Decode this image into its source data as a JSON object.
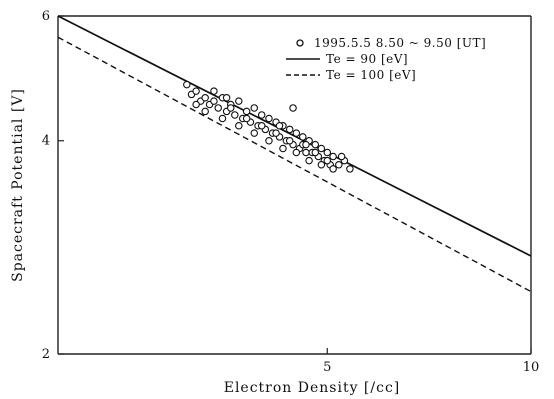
{
  "chart_data": {
    "type": "scatter",
    "xlabel": "Electron Density [/cc]",
    "ylabel": "Spacecraft Potential [V]",
    "xscale": "log",
    "yscale": "log",
    "xlim": [
      2,
      10
    ],
    "ylim": [
      2,
      6
    ],
    "x_ticks": [
      {
        "value": 5,
        "label": "5"
      },
      {
        "value": 10,
        "label": "10"
      }
    ],
    "y_ticks": [
      {
        "value": 2,
        "label": "2"
      },
      {
        "value": 4,
        "label": "4"
      },
      {
        "value": 6,
        "label": "6"
      }
    ],
    "grid": false,
    "legend_position": "top-right",
    "series": [
      {
        "name": "1995.5.5 8.50 ~ 9.50 [UT]",
        "kind": "scatter",
        "marker": "open-circle",
        "points": [
          [
            3.1,
            4.8
          ],
          [
            3.15,
            4.65
          ],
          [
            3.2,
            4.7
          ],
          [
            3.25,
            4.55
          ],
          [
            3.3,
            4.6
          ],
          [
            3.35,
            4.5
          ],
          [
            3.4,
            4.7
          ],
          [
            3.45,
            4.45
          ],
          [
            3.5,
            4.6
          ],
          [
            3.55,
            4.4
          ],
          [
            3.6,
            4.5
          ],
          [
            3.65,
            4.35
          ],
          [
            3.7,
            4.55
          ],
          [
            3.75,
            4.3
          ],
          [
            3.8,
            4.4
          ],
          [
            3.85,
            4.25
          ],
          [
            3.9,
            4.45
          ],
          [
            3.95,
            4.2
          ],
          [
            4.0,
            4.35
          ],
          [
            4.05,
            4.15
          ],
          [
            4.1,
            4.3
          ],
          [
            4.15,
            4.1
          ],
          [
            4.2,
            4.25
          ],
          [
            4.25,
            4.05
          ],
          [
            4.3,
            4.2
          ],
          [
            4.35,
            4.0
          ],
          [
            4.4,
            4.15
          ],
          [
            4.45,
            3.95
          ],
          [
            4.5,
            4.1
          ],
          [
            4.55,
            3.9
          ],
          [
            4.6,
            4.05
          ],
          [
            4.65,
            3.85
          ],
          [
            4.7,
            4.0
          ],
          [
            4.75,
            3.85
          ],
          [
            4.8,
            3.95
          ],
          [
            4.85,
            3.8
          ],
          [
            4.9,
            3.9
          ],
          [
            4.95,
            3.75
          ],
          [
            5.0,
            3.85
          ],
          [
            5.05,
            3.7
          ],
          [
            5.1,
            3.8
          ],
          [
            5.2,
            3.7
          ],
          [
            5.3,
            3.75
          ],
          [
            5.4,
            3.65
          ],
          [
            3.3,
            4.4
          ],
          [
            3.5,
            4.3
          ],
          [
            3.7,
            4.2
          ],
          [
            3.9,
            4.1
          ],
          [
            4.1,
            4.0
          ],
          [
            4.3,
            3.9
          ],
          [
            4.5,
            3.85
          ],
          [
            4.7,
            3.75
          ],
          [
            4.9,
            3.7
          ],
          [
            5.1,
            3.65
          ],
          [
            3.4,
            4.55
          ],
          [
            3.6,
            4.45
          ],
          [
            3.8,
            4.3
          ],
          [
            4.0,
            4.2
          ],
          [
            4.2,
            4.1
          ],
          [
            4.4,
            4.0
          ],
          [
            4.6,
            3.95
          ],
          [
            4.8,
            3.85
          ],
          [
            5.0,
            3.75
          ],
          [
            4.45,
            4.45
          ],
          [
            3.55,
            4.6
          ],
          [
            4.25,
            4.2
          ],
          [
            4.65,
            3.95
          ],
          [
            5.25,
            3.8
          ],
          [
            3.2,
            4.5
          ]
        ]
      },
      {
        "name": "Te = 90 [eV]",
        "kind": "line",
        "style": "solid",
        "points": [
          [
            2,
            6.0
          ],
          [
            10,
            2.75
          ]
        ]
      },
      {
        "name": "Te = 100 [eV]",
        "kind": "line",
        "style": "dashed",
        "points": [
          [
            2,
            5.6
          ],
          [
            10,
            2.45
          ]
        ]
      }
    ]
  }
}
